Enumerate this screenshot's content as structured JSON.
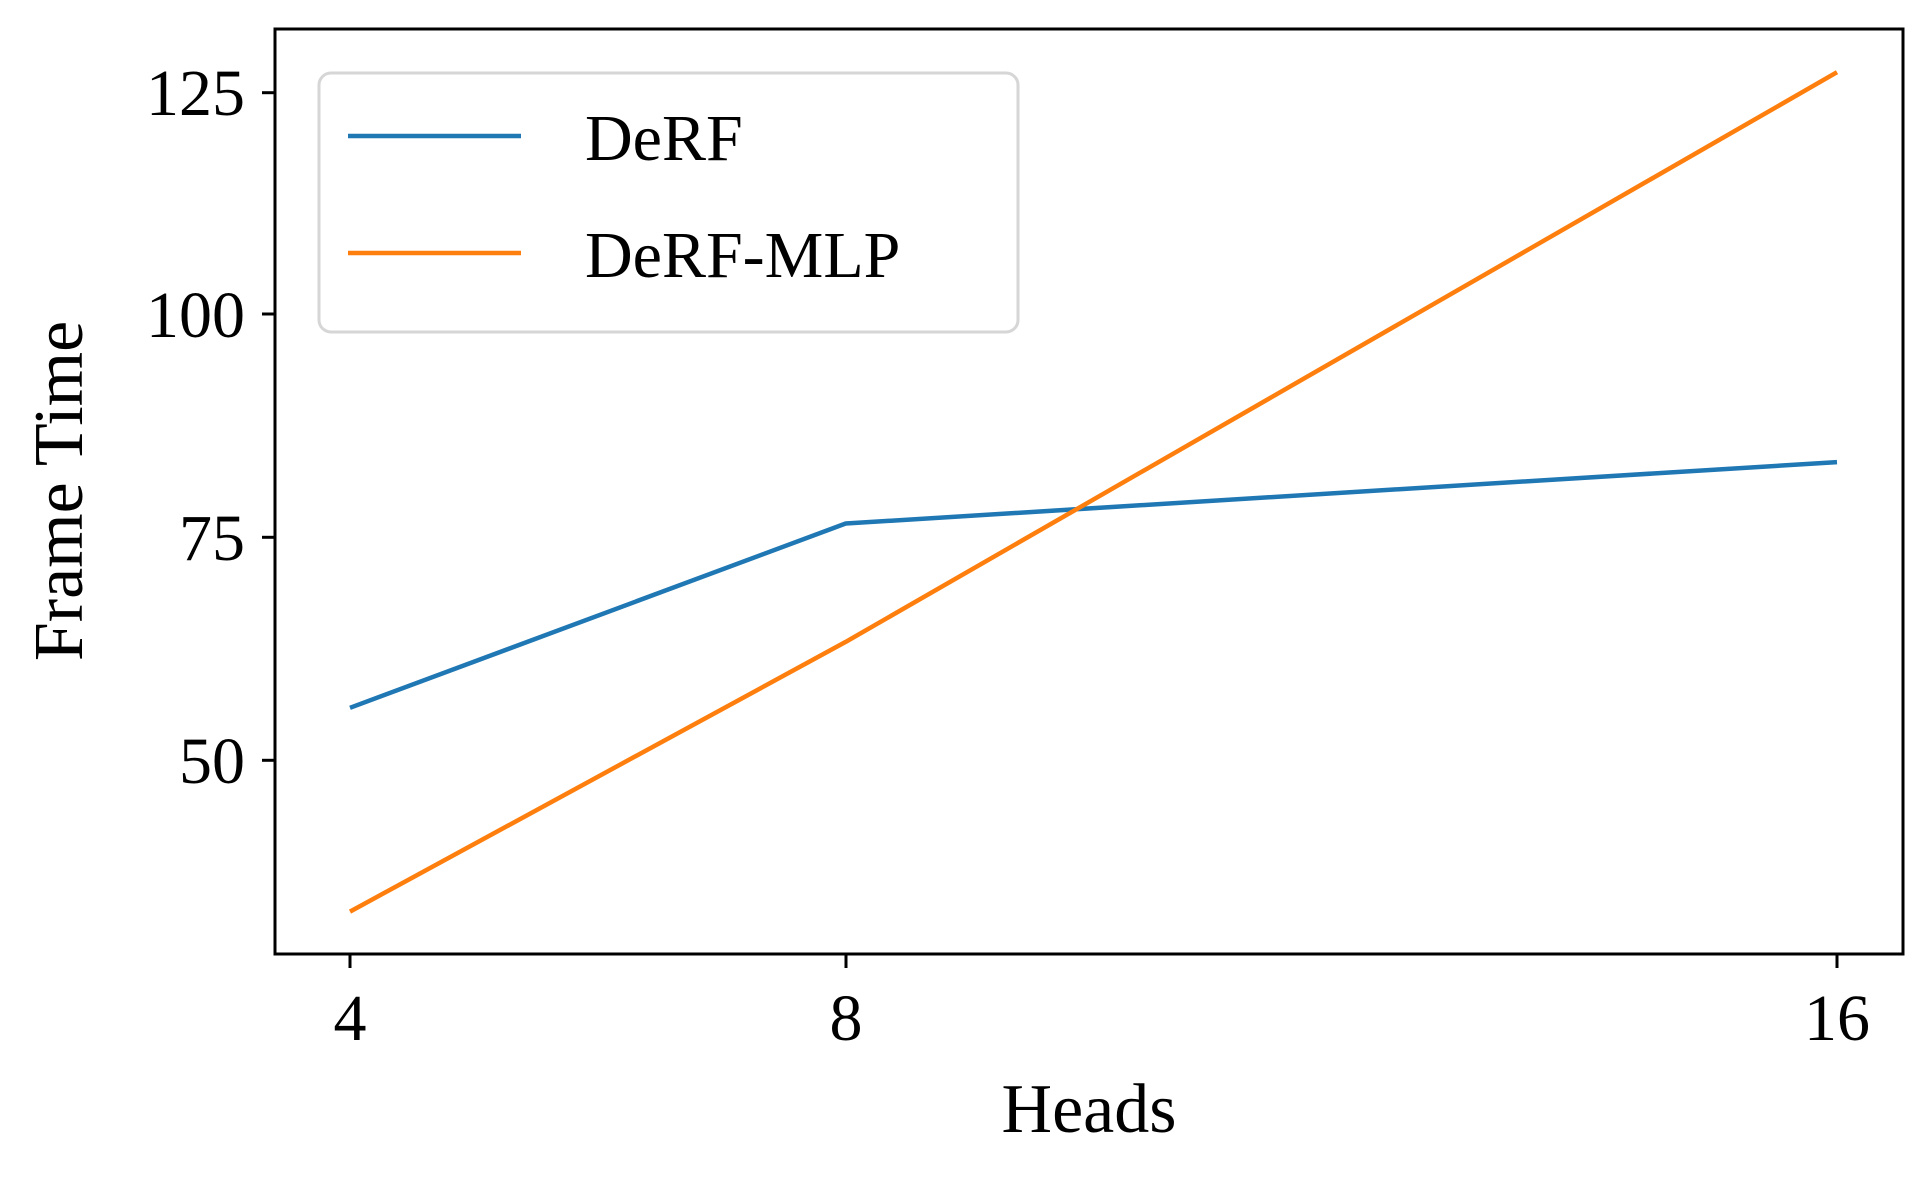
{
  "chart_data": {
    "type": "line",
    "title": "",
    "xlabel": "Heads",
    "ylabel": "Frame Time",
    "x": [
      4,
      8,
      16
    ],
    "xticks": [
      "4",
      "8",
      "16"
    ],
    "yticks": [
      "50",
      "75",
      "100",
      "125"
    ],
    "ylim": [
      29.5,
      131.5
    ],
    "grid": false,
    "legend_position": "upper left",
    "series": [
      {
        "name": "DeRF",
        "color": "#1f77b4",
        "values": [
          55.9,
          76.6,
          83.5
        ]
      },
      {
        "name": "DeRF-MLP",
        "color": "#ff7f0e",
        "values": [
          33.0,
          63.3,
          127.3
        ]
      }
    ]
  },
  "legend": {
    "items": [
      {
        "label": "DeRF",
        "color": "#1f77b4"
      },
      {
        "label": "DeRF-MLP",
        "color": "#ff7f0e"
      }
    ]
  },
  "axes": {
    "x_label": "Heads",
    "y_label": "Frame Time",
    "x_tick_labels": [
      "4",
      "8",
      "16"
    ],
    "y_tick_labels": [
      "50",
      "75",
      "100",
      "125"
    ]
  }
}
